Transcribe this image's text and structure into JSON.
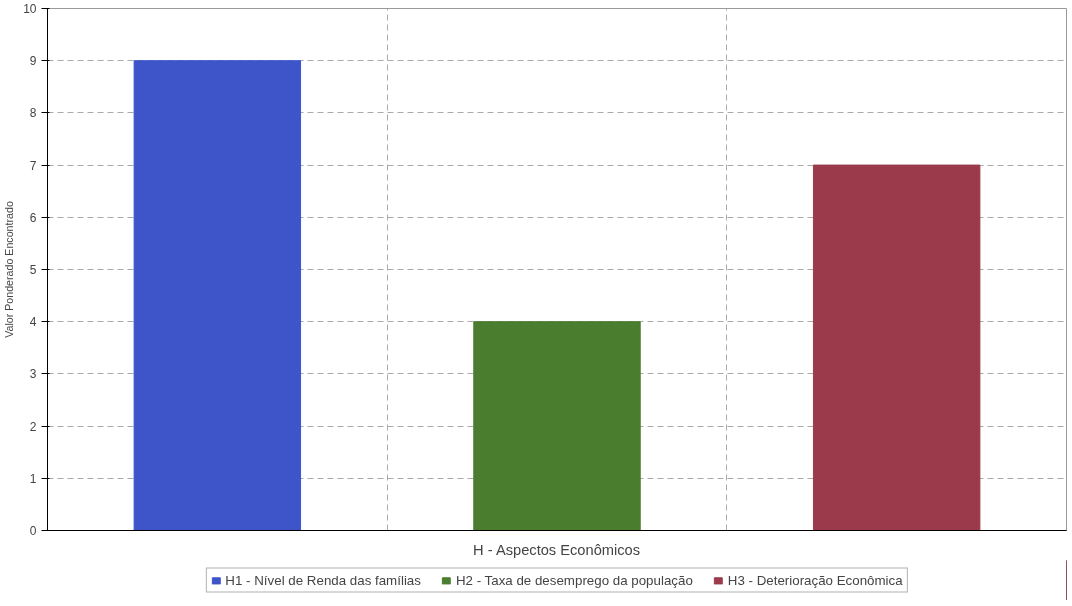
{
  "chart_data": {
    "type": "bar",
    "xlabel": "H - Aspectos Econômicos",
    "ylabel": "Valor Ponderado Encontrado",
    "categories": [
      null
    ],
    "series": [
      {
        "name": "H1 - Nível de Renda das famílias",
        "color": "#3d55c8",
        "values": [
          9
        ]
      },
      {
        "name": "H2 - Taxa de desemprego da população",
        "color": "#4a7d2e",
        "values": [
          4
        ]
      },
      {
        "name": "H3 - Deterioração Econômica",
        "color": "#9b3a4a",
        "values": [
          7
        ]
      }
    ],
    "ylim": [
      0,
      10
    ],
    "yticks": [
      0,
      1,
      2,
      3,
      4,
      5,
      6,
      7,
      8,
      9,
      10
    ],
    "grid": true,
    "legend": "bottom"
  }
}
